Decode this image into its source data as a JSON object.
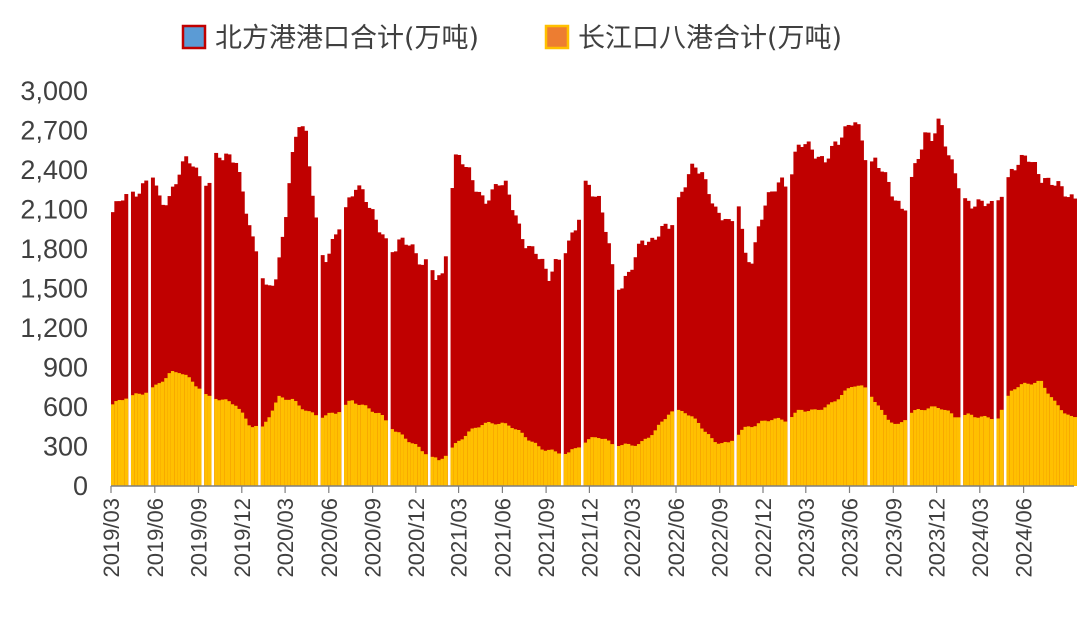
{
  "colors": {
    "north_fill": "#C00000",
    "yangtze_fill": "#FFC000",
    "legend_north_swatch": "#5B9BD5",
    "legend_north_swatch_border": "#C00000",
    "legend_yangtze_swatch": "#ED7D31",
    "legend_yangtze_swatch_border": "#FFC000",
    "axis": "#7F7F7F",
    "text": "#404040"
  },
  "chart_data": {
    "type": "area",
    "stacked": true,
    "frequency": "weekly",
    "x_start": "2019-03",
    "x_end": "2024-09",
    "ylim": [
      0,
      3000
    ],
    "y_ticks": [
      "0",
      "300",
      "600",
      "900",
      "1,200",
      "1,500",
      "1,800",
      "2,100",
      "2,400",
      "2,700",
      "3,000"
    ],
    "x_ticks": [
      "2019/03",
      "2019/06",
      "2019/09",
      "2019/12",
      "2020/03",
      "2020/06",
      "2020/09",
      "2020/12",
      "2021/03",
      "2021/06",
      "2021/09",
      "2021/12",
      "2022/03",
      "2022/06",
      "2022/09",
      "2022/12",
      "2023/03",
      "2023/06",
      "2023/09",
      "2023/12",
      "2024/03",
      "2024/06"
    ],
    "grid": false,
    "legend_position": "top",
    "series": [
      {
        "name": "北方港港口合计(万吨)",
        "description": "total height of stack (northern ports inventory, drawn behind)",
        "keyframes": [
          [
            "2019-03-01",
            2080
          ],
          [
            "2019-03-20",
            2180
          ],
          [
            "2019-04-10",
            2200
          ],
          [
            "2019-05-01",
            2280
          ],
          [
            "2019-05-25",
            2380
          ],
          [
            "2019-06-10",
            2100
          ],
          [
            "2019-06-30",
            2200
          ],
          [
            "2019-07-20",
            2420
          ],
          [
            "2019-08-05",
            2500
          ],
          [
            "2019-08-25",
            2350
          ],
          [
            "2019-09-10",
            2320
          ],
          [
            "2019-09-25",
            2300
          ],
          [
            "2019-10-05",
            2540
          ],
          [
            "2019-10-25",
            2500
          ],
          [
            "2019-11-15",
            2450
          ],
          [
            "2019-12-01",
            2200
          ],
          [
            "2019-12-20",
            1880
          ],
          [
            "2020-01-01",
            1750
          ],
          [
            "2020-01-20",
            1450
          ],
          [
            "2020-02-10",
            1600
          ],
          [
            "2020-02-25",
            2000
          ],
          [
            "2020-03-10",
            2450
          ],
          [
            "2020-03-25",
            2760
          ],
          [
            "2020-04-10",
            2650
          ],
          [
            "2020-04-25",
            2200
          ],
          [
            "2020-05-10",
            1760
          ],
          [
            "2020-05-25",
            1750
          ],
          [
            "2020-06-10",
            1880
          ],
          [
            "2020-06-25",
            2020
          ],
          [
            "2020-07-10",
            2150
          ],
          [
            "2020-07-25",
            2300
          ],
          [
            "2020-08-10",
            2240
          ],
          [
            "2020-08-25",
            2080
          ],
          [
            "2020-09-10",
            1950
          ],
          [
            "2020-09-25",
            1850
          ],
          [
            "2020-10-10",
            1800
          ],
          [
            "2020-10-25",
            1880
          ],
          [
            "2020-11-10",
            1850
          ],
          [
            "2020-11-25",
            1750
          ],
          [
            "2020-12-10",
            1680
          ],
          [
            "2020-12-25",
            1720
          ],
          [
            "2021-01-10",
            1600
          ],
          [
            "2021-01-25",
            1580
          ],
          [
            "2021-02-05",
            2060
          ],
          [
            "2021-02-20",
            2500
          ],
          [
            "2021-03-05",
            2480
          ],
          [
            "2021-03-20",
            2400
          ],
          [
            "2021-04-05",
            2250
          ],
          [
            "2021-04-20",
            2130
          ],
          [
            "2021-05-05",
            2200
          ],
          [
            "2021-05-20",
            2330
          ],
          [
            "2021-06-05",
            2300
          ],
          [
            "2021-06-20",
            2100
          ],
          [
            "2021-07-05",
            1900
          ],
          [
            "2021-07-20",
            1800
          ],
          [
            "2021-08-05",
            1820
          ],
          [
            "2021-08-20",
            1700
          ],
          [
            "2021-09-05",
            1560
          ],
          [
            "2021-09-20",
            1700
          ],
          [
            "2021-10-05",
            1780
          ],
          [
            "2021-10-20",
            1900
          ],
          [
            "2021-11-05",
            2050
          ],
          [
            "2021-11-20",
            2300
          ],
          [
            "2021-12-05",
            2200
          ],
          [
            "2021-12-20",
            2150
          ],
          [
            "2022-01-05",
            1900
          ],
          [
            "2022-01-20",
            1520
          ],
          [
            "2022-02-05",
            1520
          ],
          [
            "2022-02-20",
            1600
          ],
          [
            "2022-03-05",
            1750
          ],
          [
            "2022-03-20",
            1900
          ],
          [
            "2022-04-05",
            1850
          ],
          [
            "2022-04-20",
            1900
          ],
          [
            "2022-05-05",
            1950
          ],
          [
            "2022-05-20",
            2000
          ],
          [
            "2022-06-05",
            2200
          ],
          [
            "2022-06-20",
            2350
          ],
          [
            "2022-07-05",
            2430
          ],
          [
            "2022-07-20",
            2360
          ],
          [
            "2022-08-05",
            2250
          ],
          [
            "2022-08-20",
            2100
          ],
          [
            "2022-09-05",
            2050
          ],
          [
            "2022-09-20",
            1950
          ],
          [
            "2022-10-05",
            2200
          ],
          [
            "2022-10-20",
            1750
          ],
          [
            "2022-11-05",
            1730
          ],
          [
            "2022-11-20",
            2000
          ],
          [
            "2022-12-05",
            2150
          ],
          [
            "2022-12-20",
            2250
          ],
          [
            "2023-01-05",
            2330
          ],
          [
            "2023-01-20",
            2300
          ],
          [
            "2023-02-05",
            2550
          ],
          [
            "2023-02-20",
            2600
          ],
          [
            "2023-03-05",
            2560
          ],
          [
            "2023-03-20",
            2520
          ],
          [
            "2023-04-05",
            2480
          ],
          [
            "2023-04-20",
            2550
          ],
          [
            "2023-05-05",
            2600
          ],
          [
            "2023-05-20",
            2700
          ],
          [
            "2023-06-05",
            2810
          ],
          [
            "2023-06-20",
            2700
          ],
          [
            "2023-07-05",
            2400
          ],
          [
            "2023-07-20",
            2450
          ],
          [
            "2023-08-05",
            2400
          ],
          [
            "2023-08-20",
            2300
          ],
          [
            "2023-09-05",
            2150
          ],
          [
            "2023-09-20",
            2080
          ],
          [
            "2023-10-05",
            2300
          ],
          [
            "2023-10-20",
            2500
          ],
          [
            "2023-11-05",
            2700
          ],
          [
            "2023-11-20",
            2660
          ],
          [
            "2023-12-05",
            2780
          ],
          [
            "2023-12-20",
            2500
          ],
          [
            "2024-01-05",
            2400
          ],
          [
            "2024-01-20",
            2200
          ],
          [
            "2024-02-05",
            2150
          ],
          [
            "2024-02-20",
            2120
          ],
          [
            "2024-03-05",
            2150
          ],
          [
            "2024-03-20",
            2130
          ],
          [
            "2024-04-05",
            2200
          ],
          [
            "2024-04-20",
            2300
          ],
          [
            "2024-05-05",
            2400
          ],
          [
            "2024-05-20",
            2450
          ],
          [
            "2024-06-05",
            2500
          ],
          [
            "2024-06-20",
            2450
          ],
          [
            "2024-07-05",
            2350
          ],
          [
            "2024-07-20",
            2300
          ],
          [
            "2024-08-05",
            2280
          ],
          [
            "2024-08-20",
            2250
          ],
          [
            "2024-09-05",
            2200
          ]
        ]
      },
      {
        "name": "长江口八港合计(万吨)",
        "description": "Yangtze estuary eight-port inventory (drawn in front)",
        "keyframes": [
          [
            "2019-03-01",
            620
          ],
          [
            "2019-04-01",
            680
          ],
          [
            "2019-05-01",
            700
          ],
          [
            "2019-06-01",
            760
          ],
          [
            "2019-07-01",
            860
          ],
          [
            "2019-07-20",
            870
          ],
          [
            "2019-08-15",
            800
          ],
          [
            "2019-09-15",
            680
          ],
          [
            "2019-10-15",
            660
          ],
          [
            "2019-11-15",
            620
          ],
          [
            "2019-12-15",
            460
          ],
          [
            "2020-01-10",
            440
          ],
          [
            "2020-02-15",
            680
          ],
          [
            "2020-03-15",
            650
          ],
          [
            "2020-04-15",
            560
          ],
          [
            "2020-05-15",
            530
          ],
          [
            "2020-06-15",
            560
          ],
          [
            "2020-07-15",
            650
          ],
          [
            "2020-08-15",
            600
          ],
          [
            "2020-09-15",
            540
          ],
          [
            "2020-10-15",
            420
          ],
          [
            "2020-11-15",
            340
          ],
          [
            "2020-12-15",
            260
          ],
          [
            "2021-01-15",
            190
          ],
          [
            "2021-02-15",
            300
          ],
          [
            "2021-03-15",
            400
          ],
          [
            "2021-04-15",
            470
          ],
          [
            "2021-05-15",
            480
          ],
          [
            "2021-06-15",
            460
          ],
          [
            "2021-07-15",
            380
          ],
          [
            "2021-08-15",
            290
          ],
          [
            "2021-09-15",
            260
          ],
          [
            "2021-10-15",
            250
          ],
          [
            "2021-11-15",
            330
          ],
          [
            "2021-12-15",
            380
          ],
          [
            "2022-01-15",
            320
          ],
          [
            "2022-02-15",
            310
          ],
          [
            "2022-03-15",
            320
          ],
          [
            "2022-04-15",
            420
          ],
          [
            "2022-05-15",
            560
          ],
          [
            "2022-06-15",
            570
          ],
          [
            "2022-07-15",
            480
          ],
          [
            "2022-08-15",
            340
          ],
          [
            "2022-09-15",
            320
          ],
          [
            "2022-10-15",
            430
          ],
          [
            "2022-11-15",
            470
          ],
          [
            "2022-12-15",
            510
          ],
          [
            "2023-01-15",
            500
          ],
          [
            "2023-02-15",
            580
          ],
          [
            "2023-03-15",
            570
          ],
          [
            "2023-04-15",
            610
          ],
          [
            "2023-05-15",
            700
          ],
          [
            "2023-06-05",
            770
          ],
          [
            "2023-07-05",
            740
          ],
          [
            "2023-08-05",
            560
          ],
          [
            "2023-09-05",
            450
          ],
          [
            "2023-10-05",
            560
          ],
          [
            "2023-11-05",
            590
          ],
          [
            "2023-12-05",
            600
          ],
          [
            "2024-01-05",
            530
          ],
          [
            "2024-02-05",
            540
          ],
          [
            "2024-03-05",
            520
          ],
          [
            "2024-04-05",
            520
          ],
          [
            "2024-05-05",
            740
          ],
          [
            "2024-06-05",
            780
          ],
          [
            "2024-07-05",
            790
          ],
          [
            "2024-08-05",
            620
          ],
          [
            "2024-09-05",
            520
          ]
        ]
      }
    ],
    "gap_dates": [
      "2019-04-05",
      "2019-05-15",
      "2019-09-05",
      "2019-09-28",
      "2020-01-05",
      "2020-05-05",
      "2020-06-25",
      "2020-09-30",
      "2020-12-28",
      "2021-02-08",
      "2021-09-28",
      "2021-11-10",
      "2022-01-18",
      "2022-05-28",
      "2022-09-29",
      "2023-01-20",
      "2023-07-07",
      "2023-09-30",
      "2024-01-22",
      "2024-03-28",
      "2024-04-20"
    ]
  }
}
